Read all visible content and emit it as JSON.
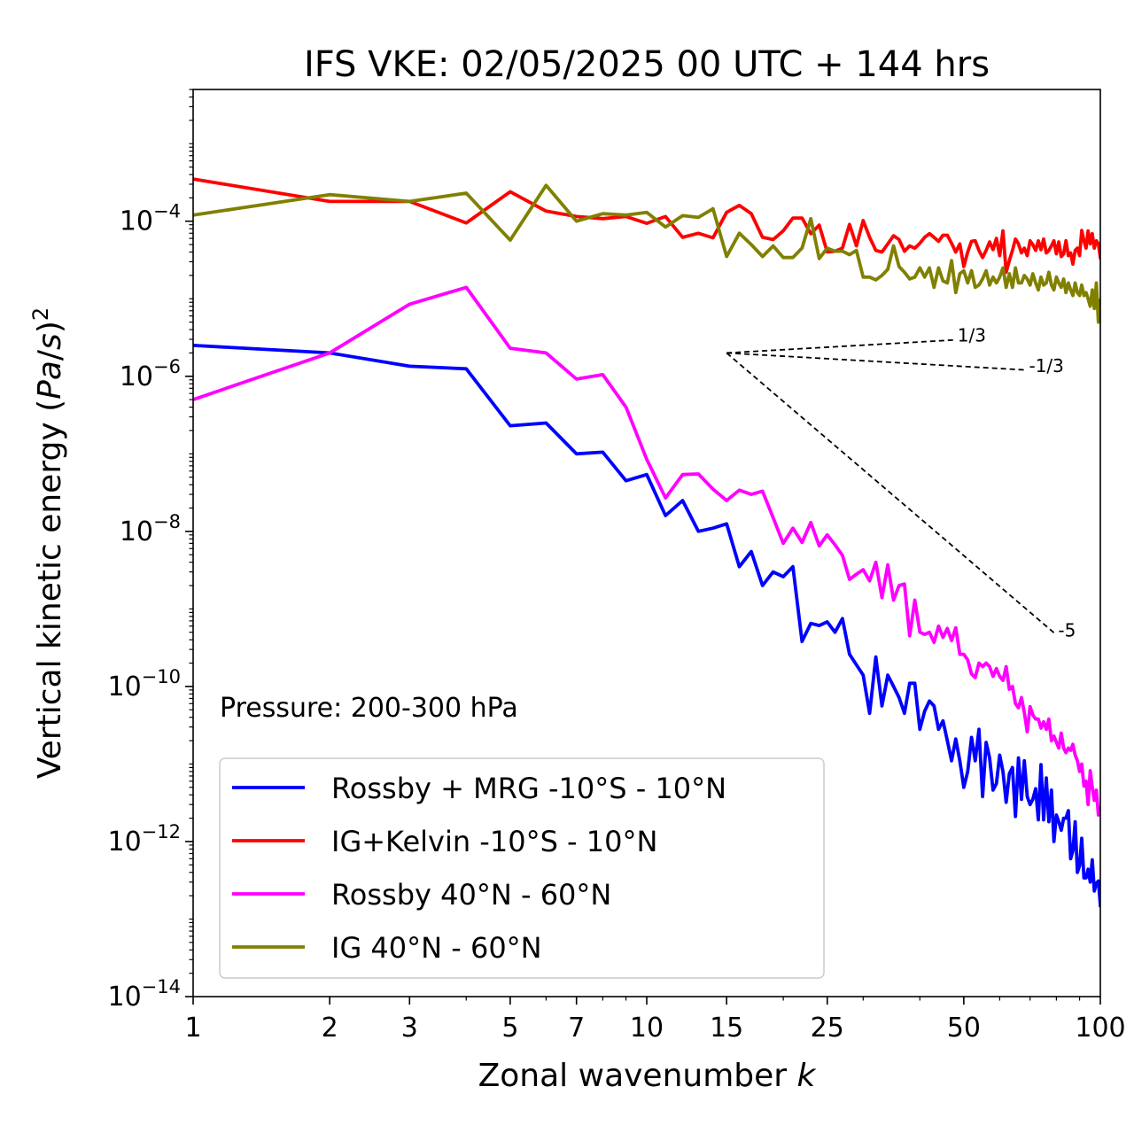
{
  "chart_data": {
    "type": "line",
    "title": "IFS VKE: 02/05/2025 00 UTC + 144 hrs",
    "xlabel": "Zonal wavenumber k",
    "ylabel": "Vertical kinetic energy (Pa/s)²",
    "x_scale": "log",
    "y_scale": "log",
    "xlim": [
      1,
      100
    ],
    "ylim": [
      1e-14,
      0.005
    ],
    "x_ticks": [
      1,
      2,
      3,
      5,
      7,
      10,
      15,
      25,
      50,
      100
    ],
    "x_tick_labels": [
      "1",
      "2",
      "3",
      "5",
      "7",
      "10",
      "15",
      "25",
      "50",
      "100"
    ],
    "y_ticks": [
      1e-14,
      1e-12,
      1e-10,
      1e-08,
      1e-06,
      0.0001
    ],
    "y_tick_labels": [
      {
        "base": "10",
        "exp": "−14"
      },
      {
        "base": "10",
        "exp": "−12"
      },
      {
        "base": "10",
        "exp": "−10"
      },
      {
        "base": "10",
        "exp": "−8"
      },
      {
        "base": "10",
        "exp": "−6"
      },
      {
        "base": "10",
        "exp": "−4"
      }
    ],
    "annotation": "Pressure: 200-300 hPa",
    "legend_position": "lower-left",
    "grid": false,
    "series": [
      {
        "name": "Rossby + MRG -10°S - 10°N",
        "color": "#0000ff",
        "x": [
          1,
          2,
          3,
          4,
          5,
          6,
          7,
          8,
          9,
          10,
          11,
          12,
          13,
          14,
          15,
          16,
          17,
          18,
          19,
          20,
          21,
          22,
          23,
          24,
          25,
          26,
          27,
          28,
          29,
          30,
          31,
          32,
          33,
          34,
          35,
          36,
          37,
          38,
          39,
          40,
          41,
          42,
          43,
          44,
          45,
          46,
          47,
          48,
          49,
          50,
          51,
          52,
          53,
          54,
          55,
          56,
          57,
          58,
          59,
          60,
          61,
          62,
          63,
          64,
          65,
          66,
          67,
          68,
          69,
          70,
          71,
          72,
          73,
          74,
          75,
          76,
          77,
          78,
          79,
          80,
          81,
          82,
          83,
          84,
          85,
          86,
          87,
          88,
          89,
          90,
          91,
          92,
          93,
          94,
          95,
          96,
          97,
          98,
          99,
          100
        ],
        "y": [
          2.5e-06,
          2e-06,
          1.35e-06,
          1.25e-06,
          2.3e-07,
          2.5e-07,
          1e-07,
          1.05e-07,
          4.5e-08,
          5.4e-08,
          1.6e-08,
          2.5e-08,
          1e-08,
          1.1e-08,
          1.25e-08,
          3.5e-09,
          5.5e-09,
          2e-09,
          3e-09,
          2.6e-09,
          3.5e-09,
          3.8e-10,
          6.5e-10,
          6.1e-10,
          6.8e-10,
          5e-10,
          7.5e-10,
          2.6e-10,
          1.9e-10,
          1.4e-10,
          4.5e-11,
          2.4e-10,
          5.6e-11,
          1.4e-10,
          1e-10,
          7.2e-11,
          4.5e-11,
          1.1e-10,
          1.1e-10,
          2.8e-11,
          4.8e-11,
          6.5e-11,
          5.6e-11,
          2.8e-11,
          3.6e-11,
          2e-11,
          1.1e-11,
          2.1e-11,
          1.1e-11,
          5e-12,
          8e-12,
          2.2e-11,
          1.1e-11,
          2.8e-11,
          3.8e-12,
          1.9e-11,
          1.2e-11,
          4.6e-12,
          5.6e-12,
          1.3e-11,
          8e-12,
          3.2e-12,
          7.5e-12,
          9e-12,
          2.1e-12,
          1.2e-11,
          3.5e-12,
          1.1e-11,
          3.8e-12,
          3e-12,
          3.5e-12,
          4.8e-12,
          1.9e-12,
          9.8e-12,
          1.9e-12,
          6.6e-12,
          1.8e-12,
          4.6e-12,
          1e-12,
          2.2e-12,
          1.8e-12,
          1.4e-12,
          2e-12,
          2e-12,
          2.5e-12,
          6e-13,
          7.6e-13,
          1.8e-12,
          4e-13,
          4.9e-13,
          1.1e-12,
          3.4e-13,
          3.4e-13,
          4.4e-13,
          3e-13,
          5.8e-13,
          2.3e-13,
          2.9e-13,
          3.1e-13,
          1.5e-13
        ]
      },
      {
        "name": "IG+Kelvin -10°S - 10°N",
        "color": "#ff0000",
        "x": [
          1,
          2,
          3,
          4,
          5,
          6,
          7,
          8,
          9,
          10,
          11,
          12,
          13,
          14,
          15,
          16,
          17,
          18,
          19,
          20,
          21,
          22,
          23,
          24,
          25,
          26,
          27,
          28,
          29,
          30,
          31,
          32,
          33,
          34,
          35,
          36,
          37,
          38,
          39,
          40,
          41,
          42,
          43,
          44,
          45,
          46,
          47,
          48,
          49,
          50,
          51,
          52,
          53,
          54,
          55,
          56,
          57,
          58,
          59,
          60,
          61,
          62,
          63,
          64,
          65,
          66,
          67,
          68,
          69,
          70,
          71,
          72,
          73,
          74,
          75,
          76,
          77,
          78,
          79,
          80,
          81,
          82,
          83,
          84,
          85,
          86,
          87,
          88,
          89,
          90,
          91,
          92,
          93,
          94,
          95,
          96,
          97,
          98,
          99,
          100
        ],
        "y": [
          0.00035,
          0.00018,
          0.00018,
          9.5e-05,
          0.00024,
          0.000135,
          0.000115,
          0.000108,
          0.000115,
          9.4e-05,
          0.000115,
          6.2e-05,
          7e-05,
          6.1e-05,
          0.00013,
          0.00016,
          0.000125,
          6.2e-05,
          5.8e-05,
          7.5e-05,
          0.00011,
          0.00011,
          6.9e-05,
          8.9e-05,
          4e-05,
          4.1e-05,
          4.5e-05,
          9.1e-05,
          4.8e-05,
          0.000102,
          6.2e-05,
          4.2e-05,
          4e-05,
          5.1e-05,
          6.5e-05,
          5.8e-05,
          4.1e-05,
          4.8e-05,
          4.5e-05,
          5.2e-05,
          6.2e-05,
          6.9e-05,
          6.2e-05,
          5.5e-05,
          6.6e-05,
          6.6e-05,
          5.2e-05,
          4e-05,
          5.1e-05,
          2.6e-05,
          4e-05,
          5.5e-05,
          5.6e-05,
          4.2e-05,
          3.4e-05,
          4.2e-05,
          5.4e-05,
          4.3e-05,
          6e-05,
          3.6e-05,
          7.5e-05,
          2.2e-05,
          3.1e-05,
          4.2e-05,
          5.9e-05,
          5.1e-05,
          3.9e-05,
          4.5e-05,
          3.6e-05,
          5.6e-05,
          5e-05,
          4.2e-05,
          5.6e-05,
          4.3e-05,
          5.9e-05,
          3.9e-05,
          4.2e-05,
          4.8e-05,
          5.6e-05,
          3.8e-05,
          5.4e-05,
          3.5e-05,
          3.8e-05,
          5.6e-05,
          3.6e-05,
          3.9e-05,
          2.8e-05,
          4.2e-05,
          4.5e-05,
          3.6e-05,
          7.6e-05,
          5.6e-05,
          4.5e-05,
          7.5e-05,
          5.1e-05,
          6.9e-05,
          4.5e-05,
          5.6e-05,
          5.1e-05,
          3.4e-05
        ]
      },
      {
        "name": "Rossby 40°N - 60°N",
        "color": "#ff00ff",
        "x": [
          1,
          2,
          3,
          4,
          5,
          6,
          7,
          8,
          9,
          10,
          11,
          12,
          13,
          14,
          15,
          16,
          17,
          18,
          19,
          20,
          21,
          22,
          23,
          24,
          25,
          26,
          27,
          28,
          29,
          30,
          31,
          32,
          33,
          34,
          35,
          36,
          37,
          38,
          39,
          40,
          41,
          42,
          43,
          44,
          45,
          46,
          47,
          48,
          49,
          50,
          51,
          52,
          53,
          54,
          55,
          56,
          57,
          58,
          59,
          60,
          61,
          62,
          63,
          64,
          65,
          66,
          67,
          68,
          69,
          70,
          71,
          72,
          73,
          74,
          75,
          76,
          77,
          78,
          79,
          80,
          81,
          82,
          83,
          84,
          85,
          86,
          87,
          88,
          89,
          90,
          91,
          92,
          93,
          94,
          95,
          96,
          97,
          98,
          99,
          100
        ],
        "y": [
          5e-07,
          2e-06,
          8.5e-06,
          1.4e-05,
          2.3e-06,
          2e-06,
          9.2e-07,
          1.05e-06,
          4e-07,
          8.5e-08,
          2.7e-08,
          5.4e-08,
          5.5e-08,
          3.5e-08,
          2.5e-08,
          3.4e-08,
          3e-08,
          3.3e-08,
          1.5e-08,
          7e-09,
          1.1e-08,
          7.2e-09,
          1.3e-08,
          6.5e-09,
          9e-09,
          6.7e-09,
          4.9e-09,
          2.4e-09,
          2.8e-09,
          3.2e-09,
          2.3e-09,
          4e-09,
          1.4e-09,
          3.7e-09,
          1.3e-09,
          2e-09,
          2.1e-09,
          4.5e-10,
          1.3e-09,
          5e-10,
          4.7e-10,
          5e-10,
          3.7e-10,
          6e-10,
          4.3e-10,
          5.6e-10,
          3.9e-10,
          5.7e-10,
          2.6e-10,
          2.6e-10,
          2.2e-10,
          1.45e-10,
          1.3e-10,
          2e-10,
          1.8e-10,
          2e-10,
          1.8e-10,
          1.35e-10,
          1.7e-10,
          1.35e-10,
          1.2e-10,
          1.8e-10,
          9.2e-11,
          1e-10,
          6e-11,
          5.3e-11,
          7.2e-11,
          4.6e-11,
          2.6e-11,
          5.5e-11,
          4.3e-11,
          3.8e-11,
          3.8e-11,
          2.9e-11,
          3.5e-11,
          2.8e-11,
          3.8e-11,
          2e-11,
          2.3e-11,
          1.9e-11,
          1.6e-11,
          2.5e-11,
          1.6e-11,
          1.4e-11,
          1.6e-11,
          1.5e-11,
          1.8e-11,
          1.3e-11,
          1.1e-11,
          8e-12,
          1e-11,
          5.2e-12,
          6e-12,
          3e-12,
          8.2e-12,
          5e-12,
          3.4e-12,
          4.6e-12,
          2.2e-12,
          2.6e-12
        ]
      },
      {
        "name": "IG 40°N - 60°N",
        "color": "#808000",
        "x": [
          1,
          2,
          3,
          4,
          5,
          6,
          7,
          8,
          9,
          10,
          11,
          12,
          13,
          14,
          15,
          16,
          17,
          18,
          19,
          20,
          21,
          22,
          23,
          24,
          25,
          26,
          27,
          28,
          29,
          30,
          31,
          32,
          33,
          34,
          35,
          36,
          37,
          38,
          39,
          40,
          41,
          42,
          43,
          44,
          45,
          46,
          47,
          48,
          49,
          50,
          51,
          52,
          53,
          54,
          55,
          56,
          57,
          58,
          59,
          60,
          61,
          62,
          63,
          64,
          65,
          66,
          67,
          68,
          69,
          70,
          71,
          72,
          73,
          74,
          75,
          76,
          77,
          78,
          79,
          80,
          81,
          82,
          83,
          84,
          85,
          86,
          87,
          88,
          89,
          90,
          91,
          92,
          93,
          94,
          95,
          96,
          97,
          98,
          99,
          100
        ],
        "y": [
          0.00012,
          0.00022,
          0.00018,
          0.00023,
          5.7e-05,
          0.00029,
          0.0001,
          0.000125,
          0.00012,
          0.00013,
          8.4e-05,
          0.000118,
          0.000112,
          0.000145,
          3.5e-05,
          7e-05,
          5e-05,
          3.5e-05,
          4.8e-05,
          3.4e-05,
          3.4e-05,
          4.5e-05,
          0.000108,
          3.3e-05,
          4.5e-05,
          4.1e-05,
          4.1e-05,
          3.7e-05,
          4.2e-05,
          1.9e-05,
          1.9e-05,
          1.75e-05,
          2e-05,
          2.4e-05,
          4.8e-05,
          2.6e-05,
          2.2e-05,
          1.8e-05,
          1.9e-05,
          2.5e-05,
          1.9e-05,
          2.5e-05,
          1.4e-05,
          2.5e-05,
          1.7e-05,
          1.6e-05,
          3.1e-05,
          1.2e-05,
          2.1e-05,
          2.3e-05,
          1.6e-05,
          2.3e-05,
          1.4e-05,
          1.5e-05,
          1.8e-05,
          2.3e-05,
          1.5e-05,
          1.9e-05,
          1.6e-05,
          1.9e-05,
          2.5e-05,
          1.4e-05,
          2.1e-05,
          1.4e-05,
          2.5e-05,
          1.6e-05,
          1.6e-05,
          2e-05,
          1.8e-05,
          1.5e-05,
          2.1e-05,
          1.6e-05,
          1.3e-05,
          1.9e-05,
          1.5e-05,
          1.6e-05,
          2.2e-05,
          1.5e-05,
          1.3e-05,
          1.9e-05,
          1.6e-05,
          1.4e-05,
          1.8e-05,
          1.2e-05,
          1.6e-05,
          1.3e-05,
          1.1e-05,
          1.6e-05,
          1.2e-05,
          1.1e-05,
          1.5e-05,
          1.1e-05,
          1.2e-05,
          1e-05,
          8e-06,
          1.3e-05,
          7.5e-06,
          1.6e-05,
          5e-06,
          9.5e-06
        ]
      }
    ],
    "reference_slopes": [
      {
        "label": "1/3",
        "slope": 0.3333,
        "x0": 15,
        "y0": 2e-06,
        "x1": 48
      },
      {
        "label": "-1/3",
        "slope": -0.3333,
        "x0": 15,
        "y0": 2e-06,
        "x1": 69
      },
      {
        "label": "-5",
        "slope": -5,
        "x0": 15,
        "y0": 2e-06,
        "x1": 80
      }
    ]
  }
}
